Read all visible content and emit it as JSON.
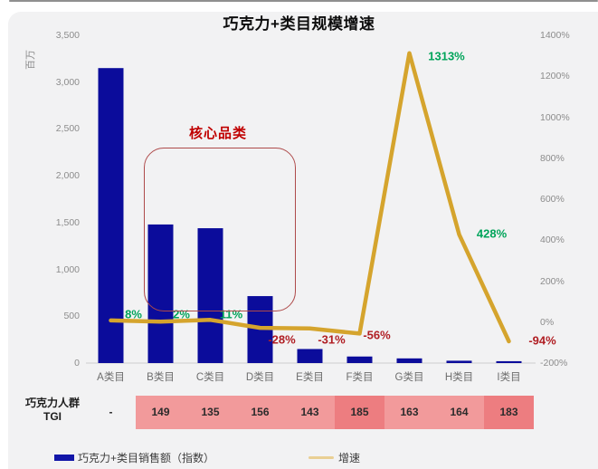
{
  "title": "巧克力+类目规模增速",
  "annotation": {
    "label": "核心品类"
  },
  "axes": {
    "left_unit": "百万",
    "left_ticks": [
      "3,500",
      "3,000",
      "2,500",
      "2,000",
      "1,500",
      "1,000",
      "500",
      "0"
    ],
    "right_ticks": [
      "1400%",
      "1200%",
      "1000%",
      "800%",
      "600%",
      "400%",
      "200%",
      "0%",
      "-200%"
    ]
  },
  "chart_data": {
    "type": "bar+line combo",
    "title": "巧克力+类目规模增速",
    "categories": [
      "A类目",
      "B类目",
      "C类目",
      "D类目",
      "E类目",
      "F类目",
      "G类目",
      "H类目",
      "I类目"
    ],
    "left_axis": {
      "unit": "百万",
      "min": 0,
      "max": 3500
    },
    "right_axis": {
      "min": -200,
      "max": 1400,
      "unit": "%"
    },
    "grid": false,
    "legend_position": "bottom-left",
    "series": [
      {
        "name": "巧克力+类目销售额（指数）",
        "type": "bar",
        "axis": "left",
        "values": [
          3150,
          1480,
          1440,
          715,
          150,
          70,
          50,
          25,
          20
        ]
      },
      {
        "name": "增速",
        "type": "line",
        "axis": "right",
        "values": [
          8,
          2,
          11,
          -28,
          -31,
          -56,
          1313,
          428,
          -94
        ],
        "labels": [
          "8%",
          "2%",
          "11%",
          "-28%",
          "-31%",
          "-56%",
          "1313%",
          "428%",
          "-94%"
        ]
      }
    ]
  },
  "table": {
    "row_header_line1": "巧克力人群",
    "row_header_line2": "TGI",
    "values": [
      "-",
      "149",
      "135",
      "156",
      "143",
      "185",
      "163",
      "164",
      "183"
    ],
    "highlight_indexes": [
      5,
      8
    ]
  },
  "legend": {
    "items": [
      {
        "label": "巧克力+类目销售额（指数）",
        "swatch": "bar"
      },
      {
        "label": "增速",
        "swatch": "line"
      }
    ]
  },
  "colors": {
    "bar": "#0b0c9b",
    "legend_bar_swatch": "#1216a8",
    "line": "#d5a42d",
    "legend_line_swatch": "#e9cf93",
    "positive_label": "#00a45a",
    "negative_label": "#b01e23",
    "annotation_text": "#c00000",
    "annotation_border": "#ae4a4a",
    "cell_pink": "#f29a9b",
    "cell_dark_pink": "#ed7d80",
    "axis_text": "#8c8c8c",
    "axis_line": "#cfcfcf",
    "card_background": "#f2f2f3"
  }
}
